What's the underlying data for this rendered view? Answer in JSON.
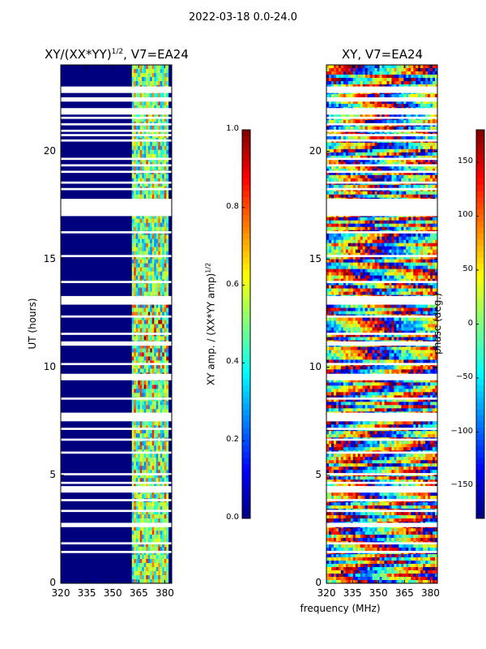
{
  "figure": {
    "suptitle": "2022-03-18 0.0-24.0",
    "xlabel_shared": "frequency (MHz)"
  },
  "colors": {
    "jet": [
      "#00007f",
      "#0000ff",
      "#007fff",
      "#00ffff",
      "#7fff7f",
      "#ffff00",
      "#ff7f00",
      "#ff0000",
      "#7f0000"
    ],
    "band_bg": "#00007f"
  },
  "chart_data": [
    {
      "type": "heatmap",
      "title": "XY/(XX*YY)",
      "title_sup": "1/2",
      "title_suffix": ", V7=EA24",
      "ylabel": "UT (hours)",
      "xticks": [
        "320",
        "335",
        "350",
        "365",
        "380"
      ],
      "xtick_values": [
        320,
        335,
        350,
        365,
        380
      ],
      "xlim": [
        320,
        384
      ],
      "yticks": [
        "0",
        "5",
        "10",
        "15",
        "20"
      ],
      "ytick_values": [
        0,
        5,
        10,
        15,
        20
      ],
      "ylim": [
        0,
        24
      ],
      "colorbar": {
        "label": "XY amp. / (XX*YY amp)",
        "label_sup": "1/2",
        "ticks": [
          "0.0",
          "0.2",
          "0.4",
          "0.6",
          "0.8",
          "1.0"
        ],
        "tick_values": [
          0.0,
          0.2,
          0.4,
          0.6,
          0.8,
          1.0
        ],
        "range": [
          0,
          1
        ]
      },
      "active_band_mhz": [
        361,
        382
      ]
    },
    {
      "type": "heatmap",
      "title": "XY, V7=EA24",
      "xticks": [
        "320",
        "335",
        "350",
        "365",
        "380"
      ],
      "xtick_values": [
        320,
        335,
        350,
        365,
        380
      ],
      "xlim": [
        320,
        384
      ],
      "yticks": [
        "0",
        "5",
        "10",
        "15",
        "20"
      ],
      "ytick_values": [
        0,
        5,
        10,
        15,
        20
      ],
      "ylim": [
        0,
        24
      ],
      "colorbar": {
        "label": "phase (deg.)",
        "ticks": [
          "−150",
          "−100",
          "−50",
          "0",
          "50",
          "100",
          "150"
        ],
        "tick_values": [
          -150,
          -100,
          -50,
          0,
          50,
          100,
          150
        ],
        "range": [
          -180,
          180
        ]
      }
    }
  ],
  "gaps_hours": [
    [
      23.0,
      22.7
    ],
    [
      22.5,
      22.3
    ],
    [
      22.0,
      21.7
    ],
    [
      21.6,
      21.5
    ],
    [
      21.3,
      21.2
    ],
    [
      21.0,
      20.9
    ],
    [
      20.8,
      20.7
    ],
    [
      20.55,
      20.45
    ],
    [
      19.7,
      19.6
    ],
    [
      19.4,
      19.3
    ],
    [
      19.1,
      19.0
    ],
    [
      18.6,
      18.5
    ],
    [
      18.3,
      18.2
    ],
    [
      17.8,
      17.0
    ],
    [
      16.3,
      16.2
    ],
    [
      15.2,
      15.1
    ],
    [
      14.0,
      13.9
    ],
    [
      13.3,
      12.9
    ],
    [
      12.4,
      12.3
    ],
    [
      11.6,
      11.5
    ],
    [
      11.2,
      11.0
    ],
    [
      10.2,
      10.1
    ],
    [
      9.7,
      9.4
    ],
    [
      8.6,
      8.5
    ],
    [
      7.9,
      7.5
    ],
    [
      7.2,
      7.1
    ],
    [
      6.7,
      6.6
    ],
    [
      6.1,
      6.0
    ],
    [
      5.1,
      5.0
    ],
    [
      4.7,
      4.6
    ],
    [
      4.5,
      4.2
    ],
    [
      3.9,
      3.8
    ],
    [
      3.4,
      3.3
    ],
    [
      2.8,
      2.6
    ],
    [
      1.9,
      1.8
    ],
    [
      1.5,
      1.4
    ]
  ]
}
